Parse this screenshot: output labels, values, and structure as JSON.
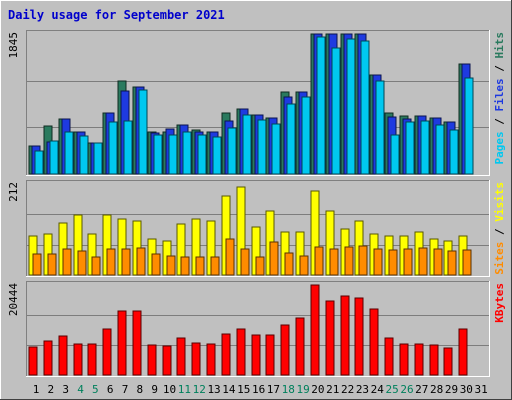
{
  "chart_data": [
    {
      "type": "bar",
      "title": "Daily usage for September 2021",
      "ylabel_parts": [
        "Pages",
        "Files",
        "Hits"
      ],
      "ymax_label": "1845",
      "categories": [
        "1",
        "2",
        "3",
        "4",
        "5",
        "6",
        "7",
        "8",
        "9",
        "10",
        "11",
        "12",
        "13",
        "14",
        "15",
        "16",
        "17",
        "18",
        "19",
        "20",
        "21",
        "22",
        "23",
        "24",
        "25",
        "26",
        "27",
        "28",
        "29",
        "30",
        "31"
      ],
      "weekend_days": [
        "4",
        "5",
        "11",
        "12",
        "18",
        "19",
        "25",
        "26"
      ],
      "ylim": [
        0,
        1845
      ],
      "grid": true,
      "series": [
        {
          "name": "Hits",
          "color": "#2a7a5e",
          "values": [
            370,
            630,
            720,
            560,
            415,
            810,
            1230,
            1150,
            560,
            560,
            640,
            580,
            550,
            810,
            860,
            780,
            740,
            1085,
            1080,
            1845,
            1845,
            1845,
            1845,
            1305,
            810,
            770,
            770,
            740,
            690,
            1450,
            0
          ]
        },
        {
          "name": "Files",
          "color": "#1e3ae0",
          "values": [
            370,
            420,
            720,
            560,
            415,
            810,
            1100,
            1150,
            540,
            590,
            640,
            555,
            550,
            700,
            860,
            780,
            740,
            1020,
            1080,
            1845,
            1845,
            1845,
            1845,
            1305,
            755,
            725,
            770,
            740,
            690,
            1450,
            0
          ]
        },
        {
          "name": "Pages",
          "color": "#00c8f0",
          "values": [
            300,
            440,
            560,
            495,
            415,
            690,
            700,
            1110,
            520,
            510,
            550,
            510,
            490,
            600,
            780,
            710,
            660,
            920,
            1010,
            1810,
            1655,
            1775,
            1755,
            1225,
            520,
            690,
            700,
            650,
            580,
            1260,
            0
          ]
        }
      ]
    },
    {
      "type": "bar",
      "ylabel_parts": [
        "Sites",
        "Visits"
      ],
      "ymax_label": "212",
      "categories": [
        "1",
        "2",
        "3",
        "4",
        "5",
        "6",
        "7",
        "8",
        "9",
        "10",
        "11",
        "12",
        "13",
        "14",
        "15",
        "16",
        "17",
        "18",
        "19",
        "20",
        "21",
        "22",
        "23",
        "24",
        "25",
        "26",
        "27",
        "28",
        "29",
        "30",
        "31"
      ],
      "ylim": [
        0,
        212
      ],
      "grid": true,
      "series": [
        {
          "name": "Visits",
          "color": "#ffff00",
          "values": [
            90,
            95,
            120,
            140,
            95,
            140,
            130,
            125,
            85,
            80,
            118,
            130,
            125,
            185,
            206,
            112,
            150,
            100,
            100,
            195,
            150,
            108,
            125,
            95,
            90,
            90,
            100,
            85,
            80,
            90,
            0
          ]
        },
        {
          "name": "Sites",
          "color": "#ff8c00",
          "values": [
            50,
            50,
            60,
            55,
            42,
            60,
            60,
            62,
            50,
            45,
            42,
            42,
            42,
            85,
            60,
            42,
            78,
            52,
            45,
            65,
            60,
            65,
            68,
            60,
            58,
            60,
            62,
            60,
            55,
            58,
            0
          ]
        }
      ]
    },
    {
      "type": "bar",
      "ylabel_parts": [
        "KBytes"
      ],
      "ymax_label": "20444",
      "categories": [
        "1",
        "2",
        "3",
        "4",
        "5",
        "6",
        "7",
        "8",
        "9",
        "10",
        "11",
        "12",
        "13",
        "14",
        "15",
        "16",
        "17",
        "18",
        "19",
        "20",
        "21",
        "22",
        "23",
        "24",
        "25",
        "26",
        "27",
        "28",
        "29",
        "30",
        "31"
      ],
      "ylim": [
        0,
        20444
      ],
      "grid": true,
      "series": [
        {
          "name": "KBytes",
          "color": "#ff0000",
          "values": [
            6400,
            7800,
            8800,
            7000,
            7000,
            10400,
            14500,
            14500,
            6900,
            6500,
            8500,
            7300,
            7100,
            9400,
            10500,
            9000,
            9000,
            11400,
            12900,
            20444,
            16900,
            17900,
            17500,
            15000,
            8500,
            7000,
            7000,
            6800,
            6100,
            10400,
            0
          ]
        }
      ]
    }
  ]
}
